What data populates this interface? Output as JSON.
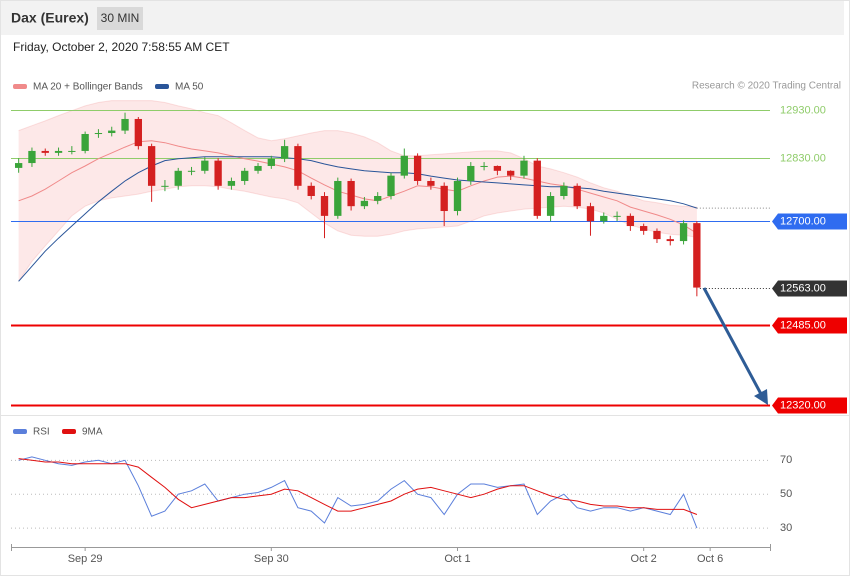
{
  "header": {
    "title": "Dax (Eurex)",
    "interval": "30 MIN",
    "timestamp": "Friday, October 2, 2020 7:58:55 AM CET",
    "credit": "Research © 2020 Trading Central"
  },
  "chart_data": [
    {
      "type": "candlestick",
      "ylim": [
        12300,
        13010
      ],
      "up_color": "#3aa43a",
      "down_color": "#d42020",
      "open": [
        12810,
        12820,
        12845,
        12841,
        12845,
        12845,
        12880,
        12882,
        12887,
        12911,
        12855,
        12773,
        12773,
        12804,
        12804,
        12825,
        12773,
        12783,
        12804,
        12814,
        12829,
        12855,
        12773,
        12752,
        12711,
        12783,
        12731,
        12742,
        12752,
        12794,
        12835,
        12783,
        12773,
        12721,
        12783,
        12814,
        12814,
        12804,
        12794,
        12825,
        12711,
        12752,
        12773,
        12731,
        12700,
        12711,
        12711,
        12690,
        12680,
        12663,
        12659,
        12696
      ],
      "high": [
        12830,
        12852,
        12850,
        12852,
        12855,
        12885,
        12890,
        12895,
        12924,
        12915,
        12860,
        12785,
        12810,
        12812,
        12832,
        12830,
        12790,
        12810,
        12820,
        12835,
        12868,
        12860,
        12780,
        12760,
        12790,
        12788,
        12750,
        12760,
        12800,
        12850,
        12840,
        12790,
        12780,
        12790,
        12822,
        12822,
        12815,
        12805,
        12835,
        12830,
        12760,
        12780,
        12778,
        12738,
        12718,
        12720,
        12716,
        12695,
        12685,
        12670,
        12702,
        12700
      ],
      "low": [
        12800,
        12812,
        12835,
        12835,
        12838,
        12840,
        12872,
        12875,
        12880,
        12848,
        12740,
        12762,
        12765,
        12795,
        12798,
        12765,
        12765,
        12775,
        12798,
        12808,
        12822,
        12765,
        12745,
        12665,
        12705,
        12722,
        12725,
        12735,
        12745,
        12788,
        12775,
        12765,
        12690,
        12712,
        12775,
        12805,
        12795,
        12785,
        12788,
        12705,
        12700,
        12745,
        12725,
        12670,
        12695,
        12700,
        12680,
        12672,
        12655,
        12650,
        12652,
        12545
      ],
      "close": [
        12820,
        12845,
        12841,
        12845,
        12845,
        12880,
        12882,
        12887,
        12911,
        12855,
        12773,
        12773,
        12804,
        12804,
        12825,
        12773,
        12783,
        12804,
        12814,
        12829,
        12855,
        12773,
        12752,
        12711,
        12783,
        12731,
        12742,
        12752,
        12794,
        12835,
        12783,
        12773,
        12721,
        12783,
        12814,
        12814,
        12804,
        12794,
        12825,
        12711,
        12752,
        12773,
        12731,
        12700,
        12711,
        12711,
        12690,
        12680,
        12663,
        12659,
        12696,
        12563
      ],
      "bands": {
        "name": "MA 20 + Bollinger Bands",
        "color": "#f08a8a",
        "fill": "#fde4e4",
        "upper": [
          12887,
          12897,
          12907,
          12918,
          12928,
          12938,
          12945,
          12949,
          12949,
          12949,
          12949,
          12945,
          12938,
          12932,
          12924,
          12918,
          12903,
          12887,
          12872,
          12866,
          12870,
          12876,
          12882,
          12887,
          12887,
          12882,
          12874,
          12862,
          12845,
          12835,
          12835,
          12837,
          12839,
          12841,
          12843,
          12845,
          12845,
          12841,
          12829,
          12814,
          12808,
          12800,
          12791,
          12779,
          12769,
          12762,
          12752,
          12742,
          12738,
          12733,
          12731,
          12729
        ],
        "middle": [
          12742,
          12752,
          12766,
          12783,
          12800,
          12814,
          12829,
          12841,
          12853,
          12864,
          12866,
          12862,
          12855,
          12849,
          12845,
          12841,
          12835,
          12829,
          12824,
          12818,
          12812,
          12804,
          12789,
          12775,
          12762,
          12754,
          12746,
          12742,
          12752,
          12762,
          12773,
          12771,
          12766,
          12762,
          12773,
          12783,
          12791,
          12793,
          12789,
          12783,
          12777,
          12773,
          12766,
          12758,
          12750,
          12742,
          12729,
          12721,
          12713,
          12704,
          12692,
          12675
        ],
        "lower": [
          12576,
          12617,
          12649,
          12680,
          12711,
          12731,
          12742,
          12748,
          12752,
          12756,
          12762,
          12766,
          12771,
          12773,
          12773,
          12771,
          12766,
          12762,
          12756,
          12750,
          12746,
          12738,
          12717,
          12696,
          12680,
          12671,
          12669,
          12669,
          12673,
          12680,
          12684,
          12686,
          12688,
          12690,
          12700,
          12711,
          12717,
          12721,
          12725,
          12727,
          12729,
          12731,
          12729,
          12725,
          12717,
          12704,
          12692,
          12684,
          12677,
          12673,
          12671,
          12667
        ]
      },
      "ma50": {
        "name": "MA 50",
        "color": "#2a5599",
        "values": [
          12576,
          12607,
          12638,
          12665,
          12690,
          12715,
          12740,
          12762,
          12783,
          12800,
          12814,
          12825,
          12829,
          12831,
          12833,
          12833,
          12833,
          12833,
          12833,
          12833,
          12831,
          12829,
          12825,
          12818,
          12812,
          12808,
          12804,
          12802,
          12800,
          12800,
          12798,
          12793,
          12789,
          12785,
          12783,
          12781,
          12779,
          12777,
          12775,
          12773,
          12771,
          12771,
          12769,
          12767,
          12762,
          12758,
          12754,
          12750,
          12746,
          12742,
          12736,
          12727
        ]
      },
      "levels": [
        {
          "value": 12930,
          "label": "12930.00",
          "color": "#8fcc6a",
          "boxed": false,
          "width": 1
        },
        {
          "value": 12830,
          "label": "12830.00",
          "color": "#8fcc6a",
          "boxed": false,
          "width": 1
        },
        {
          "value": 12700,
          "label": "12700.00",
          "color": "#2f6cf0",
          "boxed": true,
          "width": 1
        },
        {
          "value": 12485,
          "label": "12485.00",
          "color": "#ee0000",
          "boxed": true,
          "width": 2
        },
        {
          "value": 12320,
          "label": "12320.00",
          "color": "#ee0000",
          "boxed": true,
          "width": 2
        }
      ],
      "last": {
        "value": 12563,
        "label": "12563.00",
        "color": "#333333"
      }
    },
    {
      "type": "line",
      "ylim": [
        20,
        82
      ],
      "yticks": [
        30,
        50,
        70
      ],
      "grid": true,
      "categories": [
        null,
        null,
        null,
        null,
        null,
        "Sep 29",
        null,
        null,
        null,
        null,
        null,
        null,
        null,
        null,
        null,
        null,
        null,
        null,
        null,
        "Sep 30",
        null,
        null,
        null,
        null,
        null,
        null,
        null,
        null,
        null,
        null,
        null,
        null,
        null,
        "Oct 1",
        null,
        null,
        null,
        null,
        null,
        null,
        null,
        null,
        null,
        null,
        null,
        null,
        null,
        "Oct 2",
        null,
        null,
        null,
        null,
        "Oct 6",
        null,
        null,
        null,
        null
      ],
      "series": [
        {
          "name": "RSI",
          "color": "#5b7fdb",
          "values": [
            70,
            72,
            70,
            68,
            67,
            69,
            70,
            68,
            70,
            55,
            37,
            40,
            50,
            52,
            56,
            46,
            48,
            50,
            51,
            54,
            58,
            42,
            40,
            33,
            48,
            43,
            44,
            46,
            53,
            58,
            50,
            48,
            38,
            50,
            56,
            56,
            54,
            55,
            56,
            38,
            46,
            50,
            42,
            40,
            42,
            42,
            40,
            42,
            40,
            38,
            50,
            30,
            null,
            null,
            null,
            null,
            null
          ]
        },
        {
          "name": "9MA",
          "color": "#e01010",
          "values": [
            71,
            70,
            69,
            69,
            68,
            68,
            68,
            68,
            68,
            66,
            60,
            54,
            47,
            42,
            44,
            46,
            48,
            48,
            49,
            50,
            53,
            52,
            48,
            44,
            40,
            40,
            42,
            44,
            46,
            50,
            53,
            54,
            52,
            50,
            48,
            50,
            53,
            55,
            55,
            52,
            49,
            47,
            46,
            44,
            43,
            43,
            42,
            42,
            41,
            41,
            41,
            38,
            null,
            null,
            null,
            null,
            null
          ]
        }
      ]
    }
  ]
}
